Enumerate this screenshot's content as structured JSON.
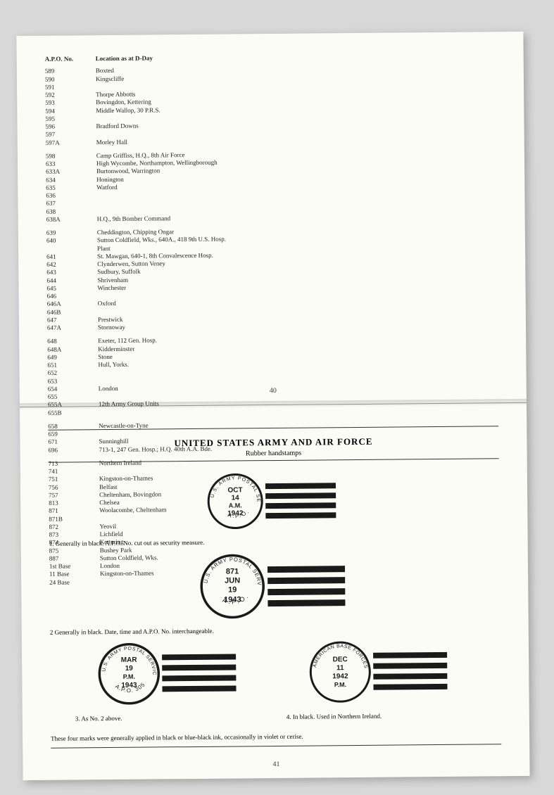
{
  "leftPage": {
    "headers": {
      "col1": "A.P.O. No.",
      "col2": "Location as at D-Day"
    },
    "rows": [
      {
        "apo": "589",
        "loc": "Boxted"
      },
      {
        "apo": "590",
        "loc": "Kingscliffe"
      },
      {
        "apo": "591",
        "loc": ""
      },
      {
        "apo": "592",
        "loc": "Thorpe Abbotts"
      },
      {
        "apo": "593",
        "loc": "Bovingdon, Kettering"
      },
      {
        "apo": "594",
        "loc": "Middle Wallop, 30 P.R.S."
      },
      {
        "apo": "595",
        "loc": ""
      },
      {
        "apo": "596",
        "loc": "Bradford Downs"
      },
      {
        "apo": "597",
        "loc": ""
      },
      {
        "apo": "597A",
        "loc": "Morley Hall"
      },
      {
        "apo": "598",
        "loc": "Camp Griffiss, H.Q., 8th Air Force"
      },
      {
        "apo": "633",
        "loc": "High Wycombe, Northampton, Wellingborough"
      },
      {
        "apo": "633A",
        "loc": "Burtonwood, Warrington"
      },
      {
        "apo": "634",
        "loc": "Honington"
      },
      {
        "apo": "635",
        "loc": "Watford"
      },
      {
        "apo": "636",
        "loc": ""
      },
      {
        "apo": "637",
        "loc": ""
      },
      {
        "apo": "638",
        "loc": ""
      },
      {
        "apo": "638A",
        "loc": "H.Q., 9th Bomber Command"
      },
      {
        "apo": "639",
        "loc": "Cheddington, Chipping Ongar"
      },
      {
        "apo": "640",
        "loc": "Sutton Coldfield, Wks., 640A., 418 9th U.S. Hosp."
      },
      {
        "apo": "",
        "loc": "Plant"
      },
      {
        "apo": "641",
        "loc": "St. Mawgan, 640-1, 8th Convalescence Hosp."
      },
      {
        "apo": "642",
        "loc": "Clynderwen, Sutton Veney"
      },
      {
        "apo": "643",
        "loc": "Sudbury, Suffolk"
      },
      {
        "apo": "644",
        "loc": "Shrivenham"
      },
      {
        "apo": "645",
        "loc": "Winchester"
      },
      {
        "apo": "646",
        "loc": ""
      },
      {
        "apo": "646A",
        "loc": "Oxford"
      },
      {
        "apo": "646B",
        "loc": ""
      },
      {
        "apo": "647",
        "loc": "Prestwick"
      },
      {
        "apo": "647A",
        "loc": "Stornoway"
      },
      {
        "apo": "648",
        "loc": "Exeter, 112 Gen. Hosp."
      },
      {
        "apo": "648A",
        "loc": "Kidderminster"
      },
      {
        "apo": "649",
        "loc": "Stone"
      },
      {
        "apo": "651",
        "loc": "Hull, Yorks."
      },
      {
        "apo": "652",
        "loc": ""
      },
      {
        "apo": "653",
        "loc": ""
      },
      {
        "apo": "654",
        "loc": "London"
      },
      {
        "apo": "655",
        "loc": ""
      },
      {
        "apo": "655A",
        "loc": "12th Army Group Units"
      },
      {
        "apo": "655B",
        "loc": ""
      },
      {
        "apo": "658",
        "loc": "Newcastle-on-Tyne"
      },
      {
        "apo": "659",
        "loc": ""
      },
      {
        "apo": "671",
        "loc": "Sunninghill"
      },
      {
        "apo": "696",
        "loc": "713-1, 247 Gen. Hosp.; H.Q. 40th A.A. Bde."
      },
      {
        "apo": "713",
        "loc": "Northern Ireland"
      },
      {
        "apo": "741",
        "loc": ""
      },
      {
        "apo": "751",
        "loc": "Kingston-on-Thames"
      },
      {
        "apo": "756",
        "loc": "Belfast"
      },
      {
        "apo": "757",
        "loc": "Cheltenham, Bovingdon"
      },
      {
        "apo": "813",
        "loc": "Chelsea"
      },
      {
        "apo": "871",
        "loc": "Woolacombe, Cheltenham"
      },
      {
        "apo": "871B",
        "loc": ""
      },
      {
        "apo": "872",
        "loc": "Yeovil"
      },
      {
        "apo": "873",
        "loc": "Lichfield"
      },
      {
        "apo": "874",
        "loc": "Kettering"
      },
      {
        "apo": "875",
        "loc": "Bushey Park"
      },
      {
        "apo": "887",
        "loc": "Sutton Coldfield, Wks."
      },
      {
        "apo": "1st Base",
        "loc": "London"
      },
      {
        "apo": "11 Base",
        "loc": "Kingston-on-Thames"
      },
      {
        "apo": "24 Base",
        "loc": ""
      }
    ],
    "pageNum": "40"
  },
  "rightPage": {
    "title": "UNITED STATES ARMY AND AIR FORCE",
    "subtitle": "Rubber handstamps",
    "postmarks": [
      {
        "topText": "U.S. ARMY POSTAL SERVICE",
        "bottomText": "A.P.O.",
        "lines": [
          "OCT",
          "14",
          "A.M.",
          "1942"
        ]
      },
      {
        "topText": "U.S. ARMY POSTAL SERVICE",
        "bottomText": "A.P.O.",
        "lines": [
          "871",
          "JUN",
          "19",
          "1943"
        ]
      },
      {
        "topText": "U.S. ARMY POSTAL SERVICE",
        "bottomText": "A.P.O. 305",
        "lines": [
          "MAR",
          "19",
          "P.M.",
          "1943"
        ]
      },
      {
        "topText": "AMERICAN BASE FORCES",
        "bottomText": "",
        "lines": [
          "DEC",
          "11",
          "1942",
          "P.M."
        ]
      }
    ],
    "captions": [
      "1. Generally in black. A.P.O. No. cut out as security measure.",
      "2 Generally in black. Date, time and A.P.O. No. interchangeable.",
      "3. As No. 2 above.",
      "4. In black. Used in Northern Ireland."
    ],
    "footnote": "These four marks were generally applied in black or blue-black ink, occasionally in violet or cerise.",
    "pageNum": "41"
  }
}
